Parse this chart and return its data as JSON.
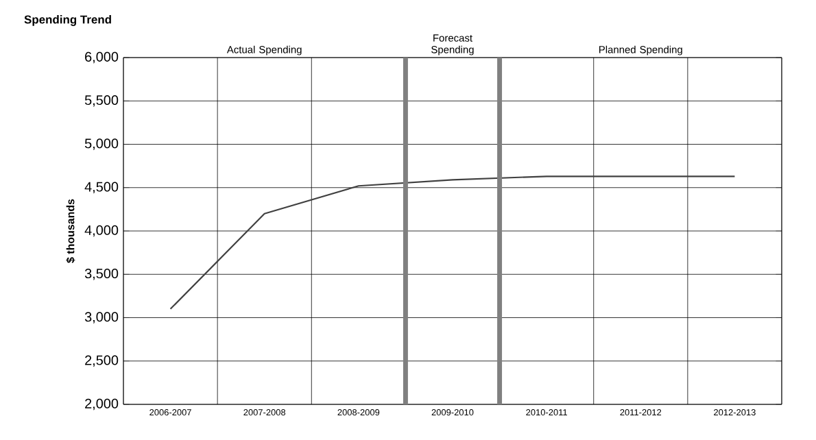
{
  "chart_data": {
    "type": "line",
    "title": "Spending Trend",
    "ylabel": "$ thousands",
    "categories": [
      "2006-2007",
      "2007-2008",
      "2008-2009",
      "2009-2010",
      "2010-2011",
      "2011-2012",
      "2012-2013"
    ],
    "series": [
      {
        "color": "#404040",
        "values": [
          3100,
          4200,
          4520,
          4590,
          4630,
          4630,
          4630
        ]
      }
    ],
    "ylim": [
      2000,
      6000
    ],
    "yticks": [
      {
        "value": 2000,
        "label": "2,000"
      },
      {
        "value": 2500,
        "label": "2,500"
      },
      {
        "value": 3000,
        "label": "3,000"
      },
      {
        "value": 3500,
        "label": "3,500"
      },
      {
        "value": 4000,
        "label": "4,000"
      },
      {
        "value": 4500,
        "label": "4,500"
      },
      {
        "value": 5000,
        "label": "5,000"
      },
      {
        "value": 5500,
        "label": "5,500"
      },
      {
        "value": 6000,
        "label": "6,000"
      }
    ],
    "annotations": [
      "Actual Spending",
      "Forecast Spending",
      "Planned Spending"
    ],
    "grid": true,
    "marker": "none",
    "line_style": "solid"
  }
}
